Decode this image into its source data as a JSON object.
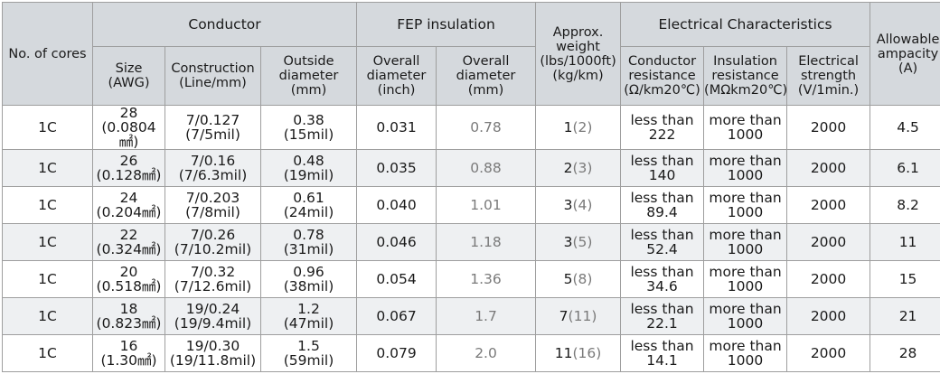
{
  "headers": {
    "cores": "No. of cores",
    "conductor": "Conductor",
    "fep": "FEP insulation",
    "weight": [
      "Approx.",
      "weight",
      "(lbs/1000ft)",
      "(kg/km)"
    ],
    "electrical": "Electrical Characteristics",
    "ampacity": [
      "Allowable",
      "ampacity",
      "(A)"
    ],
    "size": [
      "Size",
      "(AWG)"
    ],
    "construction": [
      "Construction",
      "(Line/mm)"
    ],
    "outside_diameter": [
      "Outside",
      "diameter",
      "(mm)"
    ],
    "overall_diameter_inch": [
      "Overall",
      "diameter",
      "(inch)"
    ],
    "overall_diameter_mm": [
      "Overall",
      "diameter",
      "(mm)"
    ],
    "conductor_resistance": [
      "Conductor",
      "resistance",
      "(Ω/km20℃)"
    ],
    "insulation_resistance": [
      "Insulation",
      "resistance",
      "(MΩkm20℃)"
    ],
    "electrical_strength": [
      "Electrical",
      "strength",
      "(V/1min.)"
    ]
  },
  "rows": [
    {
      "cores": "1C",
      "size1": "28",
      "size2": "(0.0804㎟)",
      "cons1": "7/0.127",
      "cons2": "(7/5mil)",
      "od1": "0.38",
      "od2": "(15mil)",
      "oinch": "0.031",
      "omm": "0.78",
      "w1": "1",
      "w2": "(2)",
      "cr1": "less than",
      "cr2": "222",
      "ir1": "more than",
      "ir2": "1000",
      "es": "2000",
      "amp": "4.5"
    },
    {
      "cores": "1C",
      "size1": "26",
      "size2": "(0.128㎟)",
      "cons1": "7/0.16",
      "cons2": "(7/6.3mil)",
      "od1": "0.48",
      "od2": "(19mil)",
      "oinch": "0.035",
      "omm": "0.88",
      "w1": "2",
      "w2": "(3)",
      "cr1": "less than",
      "cr2": "140",
      "ir1": "more than",
      "ir2": "1000",
      "es": "2000",
      "amp": "6.1"
    },
    {
      "cores": "1C",
      "size1": "24",
      "size2": "(0.204㎟)",
      "cons1": "7/0.203",
      "cons2": "(7/8mil)",
      "od1": "0.61",
      "od2": "(24mil)",
      "oinch": "0.040",
      "omm": "1.01",
      "w1": "3",
      "w2": "(4)",
      "cr1": "less than",
      "cr2": "89.4",
      "ir1": "more than",
      "ir2": "1000",
      "es": "2000",
      "amp": "8.2"
    },
    {
      "cores": "1C",
      "size1": "22",
      "size2": "(0.324㎟)",
      "cons1": "7/0.26",
      "cons2": "(7/10.2mil)",
      "od1": "0.78",
      "od2": "(31mil)",
      "oinch": "0.046",
      "omm": "1.18",
      "w1": "3",
      "w2": "(5)",
      "cr1": "less than",
      "cr2": "52.4",
      "ir1": "more than",
      "ir2": "1000",
      "es": "2000",
      "amp": "11"
    },
    {
      "cores": "1C",
      "size1": "20",
      "size2": "(0.518㎟)",
      "cons1": "7/0.32",
      "cons2": "(7/12.6mil)",
      "od1": "0.96",
      "od2": "(38mil)",
      "oinch": "0.054",
      "omm": "1.36",
      "w1": "5",
      "w2": "(8)",
      "cr1": "less than",
      "cr2": "34.6",
      "ir1": "more than",
      "ir2": "1000",
      "es": "2000",
      "amp": "15"
    },
    {
      "cores": "1C",
      "size1": "18",
      "size2": "(0.823㎟)",
      "cons1": "19/0.24",
      "cons2": "(19/9.4mil)",
      "od1": "1.2",
      "od2": "(47mil)",
      "oinch": "0.067",
      "omm": "1.7",
      "w1": "7",
      "w2": "(11)",
      "cr1": "less than",
      "cr2": "22.1",
      "ir1": "more than",
      "ir2": "1000",
      "es": "2000",
      "amp": "21"
    },
    {
      "cores": "1C",
      "size1": "16",
      "size2": "(1.30㎟)",
      "cons1": "19/0.30",
      "cons2": "(19/11.8mil)",
      "od1": "1.5",
      "od2": "(59mil)",
      "oinch": "0.079",
      "omm": "2.0",
      "w1": "11",
      "w2": "(16)",
      "cr1": "less than",
      "cr2": "14.1",
      "ir1": "more than",
      "ir2": "1000",
      "es": "2000",
      "amp": "28"
    }
  ]
}
